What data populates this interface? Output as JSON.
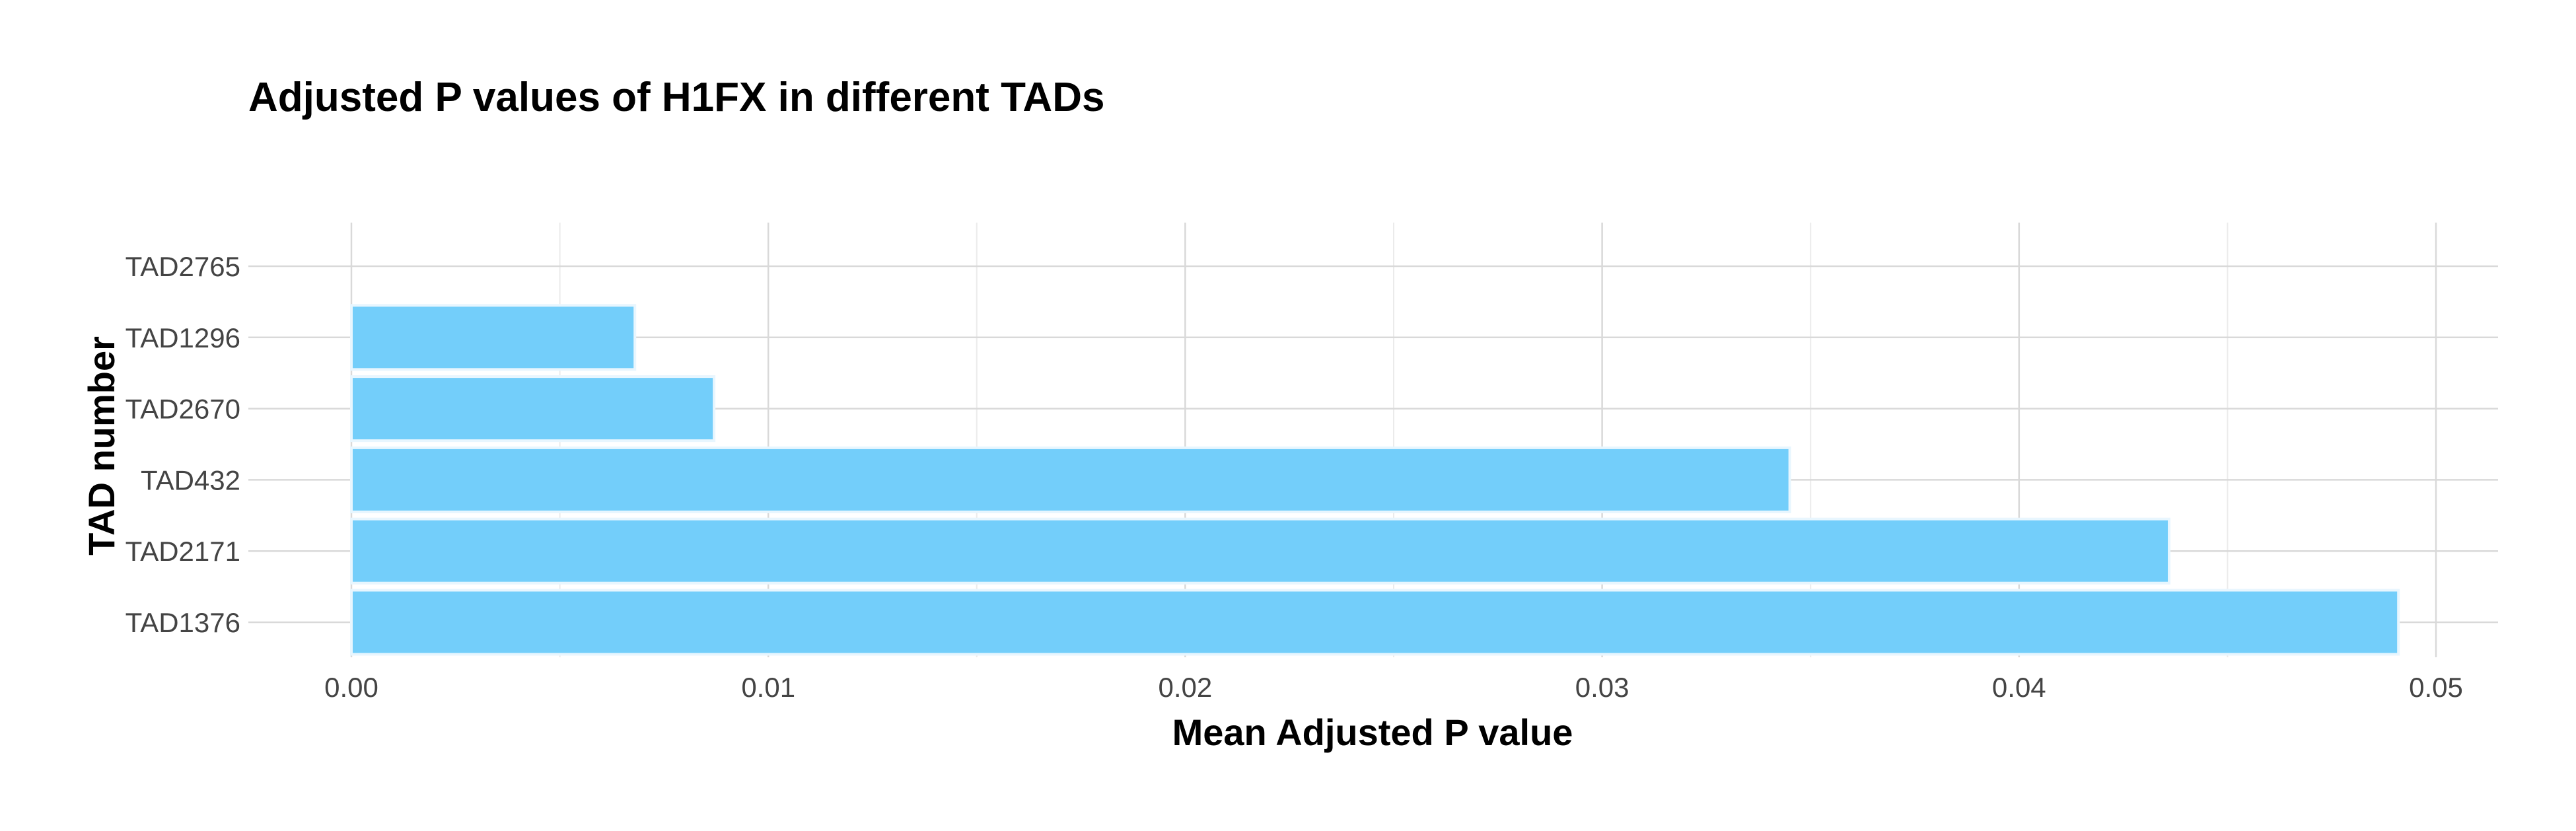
{
  "chart_data": {
    "type": "bar",
    "orientation": "horizontal",
    "title": "Adjusted P values of H1FX in different TADs",
    "xlabel": "Mean Adjusted P value",
    "ylabel": "TAD number",
    "categories": [
      "TAD1376",
      "TAD2171",
      "TAD432",
      "TAD2670",
      "TAD1296",
      "TAD2765"
    ],
    "values": [
      0.0491,
      0.0436,
      0.0345,
      0.0087,
      0.0068,
      0.0
    ],
    "xlim": [
      0.0,
      0.05
    ],
    "xticks": [
      "0.00",
      "0.01",
      "0.02",
      "0.03",
      "0.04",
      "0.05"
    ],
    "grid": true,
    "legend": "none",
    "colors": {
      "bar_fill": "#73CEFA",
      "bar_stroke": "#E8F6FE",
      "grid_major": "#D9D9D9",
      "grid_minor": "#EBEBEB",
      "background": "#FFFFFF"
    }
  }
}
